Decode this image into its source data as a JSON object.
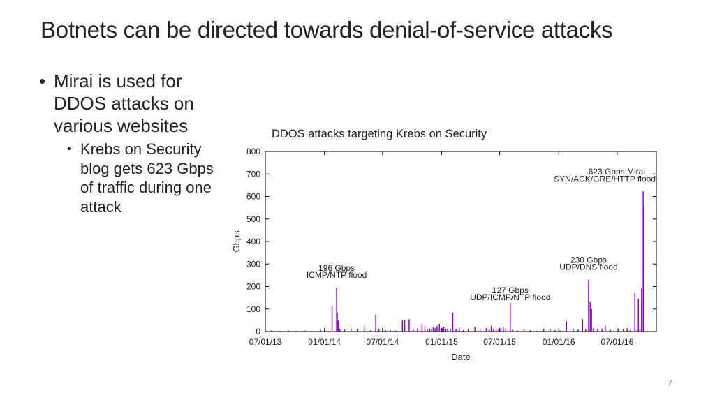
{
  "slide": {
    "title": "Botnets can be directed towards denial-of-service attacks",
    "bullet_main": "Mirai is used for DDOS attacks on various websites",
    "bullet_sub": "Krebs on Security blog gets 623 Gbps of traffic during one attack",
    "bullet_glyph": "•",
    "page_number": "7"
  },
  "chart_caption": "DDOS attacks targeting Krebs on Security",
  "colors": {
    "bar": "#9400d3",
    "axis": "#000000",
    "text": "#222222"
  },
  "chart_data": {
    "type": "bar",
    "xlabel": "Date",
    "ylabel": "Gbps",
    "ylim": [
      0,
      800
    ],
    "xlim": [
      "2013-07-01",
      "2016-10-31"
    ],
    "grid": false,
    "yticks": [
      0,
      100,
      200,
      300,
      400,
      500,
      600,
      700,
      800
    ],
    "xticks": [
      {
        "date": "2013-07-01",
        "label": "07/01/13"
      },
      {
        "date": "2014-01-01",
        "label": "01/01/14"
      },
      {
        "date": "2014-07-01",
        "label": "07/01/14"
      },
      {
        "date": "2015-01-01",
        "label": "01/01/15"
      },
      {
        "date": "2015-07-01",
        "label": "07/01/15"
      },
      {
        "date": "2016-01-01",
        "label": "01/01/16"
      },
      {
        "date": "2016-07-01",
        "label": "07/01/16"
      }
    ],
    "annotations": [
      {
        "lines": [
          "196 Gbps",
          "ICMP/NTP flood"
        ],
        "date": "2014-02-08",
        "value": 196
      },
      {
        "lines": [
          "127 Gbps",
          "UDP/ICMP/NTP flood"
        ],
        "date": "2015-08-03",
        "value": 127
      },
      {
        "lines": [
          "230 Gbps",
          "UDP/DNS flood"
        ],
        "date": "2016-04-03",
        "value": 230
      },
      {
        "lines": [
          "623 Gbps Mirai",
          "SYN/ACK/GRE/HTTP flood"
        ],
        "date": "2016-09-20",
        "value": 623
      }
    ],
    "series": [
      {
        "dates": [
          "2013-07-20",
          "2013-08-15",
          "2013-09-10",
          "2013-10-05",
          "2013-11-01",
          "2013-11-25",
          "2013-12-20",
          "2014-01-25",
          "2014-02-08",
          "2014-02-10",
          "2014-02-13",
          "2014-02-18",
          "2014-03-05",
          "2014-03-25",
          "2014-04-15",
          "2014-05-05",
          "2014-05-25",
          "2014-06-10",
          "2014-06-20",
          "2014-07-10",
          "2014-07-25",
          "2014-08-10",
          "2014-09-01",
          "2014-09-08",
          "2014-09-22",
          "2014-10-05",
          "2014-10-18",
          "2014-11-01",
          "2014-11-10",
          "2014-11-18",
          "2014-11-25",
          "2014-12-01",
          "2014-12-06",
          "2014-12-12",
          "2014-12-18",
          "2014-12-25",
          "2014-12-30",
          "2015-01-03",
          "2015-01-08",
          "2015-01-14",
          "2015-01-20",
          "2015-01-28",
          "2015-02-05",
          "2015-02-15",
          "2015-02-25",
          "2015-03-10",
          "2015-03-25",
          "2015-04-15",
          "2015-05-01",
          "2015-05-20",
          "2015-05-30",
          "2015-06-05",
          "2015-06-12",
          "2015-06-20",
          "2015-06-28",
          "2015-07-05",
          "2015-07-12",
          "2015-07-20",
          "2015-08-03",
          "2015-08-10",
          "2015-08-25",
          "2015-09-15",
          "2015-10-05",
          "2015-10-25",
          "2015-11-15",
          "2015-12-05",
          "2015-12-20",
          "2016-01-05",
          "2016-01-25",
          "2016-02-15",
          "2016-03-01",
          "2016-03-15",
          "2016-03-25",
          "2016-04-03",
          "2016-04-08",
          "2016-04-12",
          "2016-04-18",
          "2016-05-01",
          "2016-05-15",
          "2016-05-25",
          "2016-06-10",
          "2016-07-05",
          "2016-07-20",
          "2016-08-01",
          "2016-08-10",
          "2016-08-25",
          "2016-09-01",
          "2016-09-05",
          "2016-09-10",
          "2016-09-15",
          "2016-09-20",
          "2016-09-21",
          "2016-09-22"
        ],
        "values": [
          5,
          3,
          6,
          4,
          5,
          3,
          8,
          110,
          196,
          85,
          50,
          12,
          8,
          15,
          10,
          25,
          6,
          75,
          12,
          6,
          8,
          5,
          50,
          52,
          55,
          8,
          14,
          35,
          25,
          8,
          14,
          10,
          20,
          15,
          25,
          35,
          10,
          15,
          22,
          12,
          14,
          12,
          85,
          10,
          18,
          6,
          12,
          20,
          10,
          15,
          8,
          25,
          12,
          8,
          10,
          15,
          20,
          12,
          127,
          8,
          5,
          10,
          6,
          4,
          12,
          10,
          6,
          5,
          45,
          12,
          8,
          55,
          10,
          230,
          130,
          100,
          15,
          10,
          12,
          25,
          8,
          12,
          10,
          15,
          5,
          170,
          8,
          145,
          12,
          190,
          623,
          560,
          8
        ]
      }
    ]
  }
}
